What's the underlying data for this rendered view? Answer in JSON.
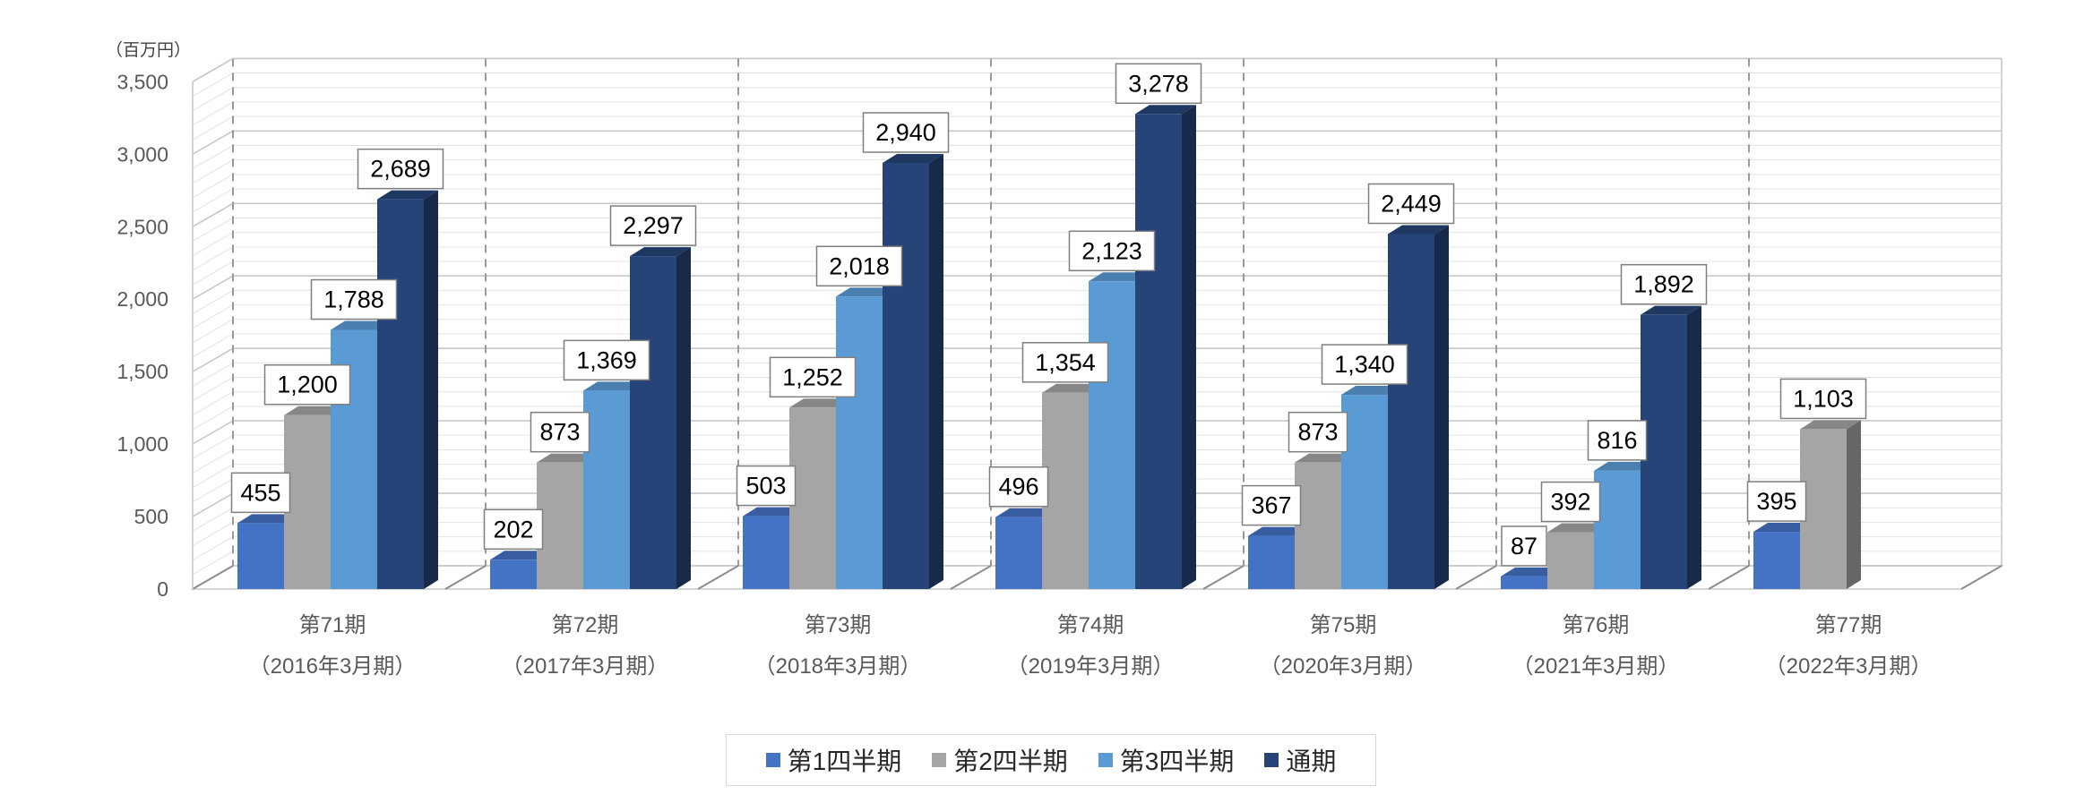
{
  "chart_data": {
    "type": "bar",
    "unit_label": "（百万円）",
    "categories": [
      {
        "line1": "第71期",
        "line2": "（2016年3月期）"
      },
      {
        "line1": "第72期",
        "line2": "（2017年3月期）"
      },
      {
        "line1": "第73期",
        "line2": "（2018年3月期）"
      },
      {
        "line1": "第74期",
        "line2": "（2019年3月期）"
      },
      {
        "line1": "第75期",
        "line2": "（2020年3月期）"
      },
      {
        "line1": "第76期",
        "line2": "（2021年3月期）"
      },
      {
        "line1": "第77期",
        "line2": "（2022年3月期）"
      }
    ],
    "series": [
      {
        "name": "第1四半期",
        "color": "#4472c4",
        "values": [
          455,
          202,
          503,
          496,
          367,
          87,
          395
        ]
      },
      {
        "name": "第2四半期",
        "color": "#a5a5a5",
        "values": [
          1200,
          873,
          1252,
          1354,
          873,
          392,
          1103
        ]
      },
      {
        "name": "第3四半期",
        "color": "#5b9bd5",
        "values": [
          1788,
          1369,
          2018,
          2123,
          1340,
          816,
          null
        ]
      },
      {
        "name": "通期",
        "color": "#264478",
        "values": [
          2689,
          2297,
          2940,
          3278,
          2449,
          1892,
          null
        ]
      }
    ],
    "yticks": [
      "0",
      "500",
      "1,000",
      "1,500",
      "2,000",
      "2,500",
      "3,000",
      "3,500"
    ],
    "ylim": [
      0,
      3500
    ],
    "minor_grid_step": 100,
    "grid": true,
    "three_d": true,
    "legend_position": "bottom"
  }
}
